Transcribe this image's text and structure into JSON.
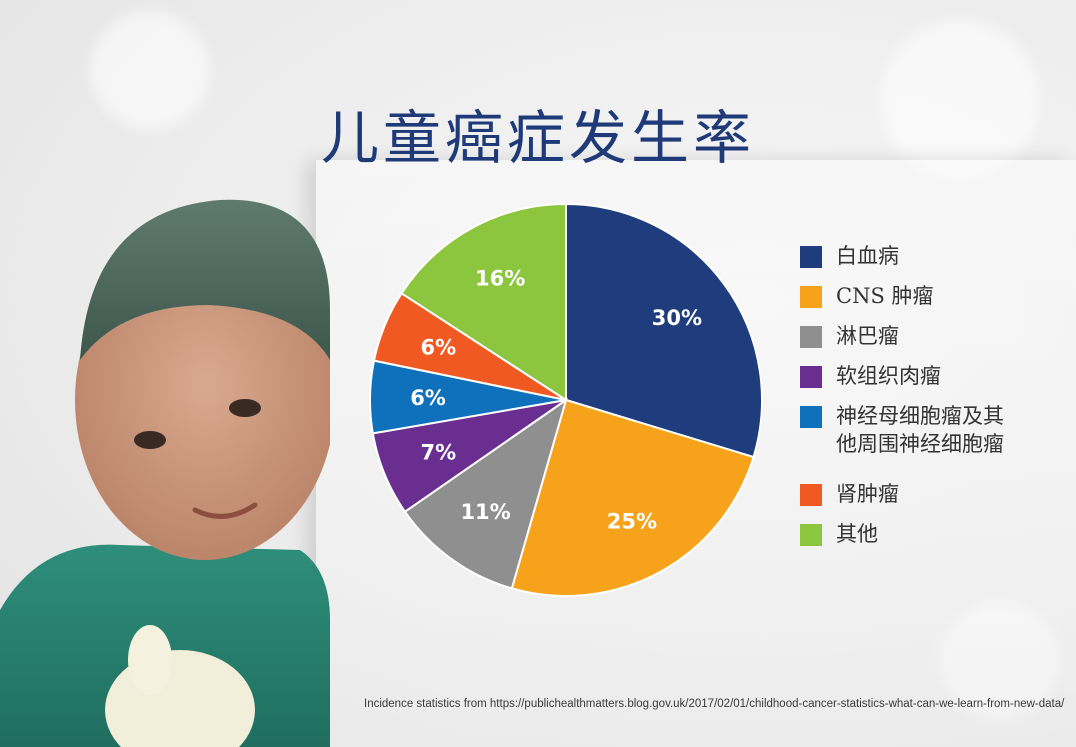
{
  "title": "儿童癌症发生率",
  "source_note": "Incidence statistics from https://publichealthmatters.blog.gov.uk/2017/02/01/childhood-cancer-statistics-what-can-we-learn-from-new-data/",
  "chart_data": {
    "type": "pie",
    "title": "儿童癌症发生率",
    "legend_position": "right",
    "slices": [
      {
        "label": "白血病",
        "value": 30,
        "display": "30%",
        "color": "#1f3c7d"
      },
      {
        "label": "CNS 肿瘤",
        "value": 25,
        "display": "25%",
        "color": "#f7a21b"
      },
      {
        "label": "淋巴瘤",
        "value": 11,
        "display": "11%",
        "color": "#8f8f8f"
      },
      {
        "label": "软组织肉瘤",
        "value": 7,
        "display": "7%",
        "color": "#6a2e91"
      },
      {
        "label": "神经母细胞瘤及其\n他周围神经细胞瘤",
        "value": 6,
        "display": "6%",
        "color": "#0f71bb"
      },
      {
        "label": "肾肿瘤",
        "value": 6,
        "display": "6%",
        "color": "#f05a22"
      },
      {
        "label": "其他",
        "value": 16,
        "display": "16%",
        "color": "#8cc63f"
      }
    ]
  }
}
